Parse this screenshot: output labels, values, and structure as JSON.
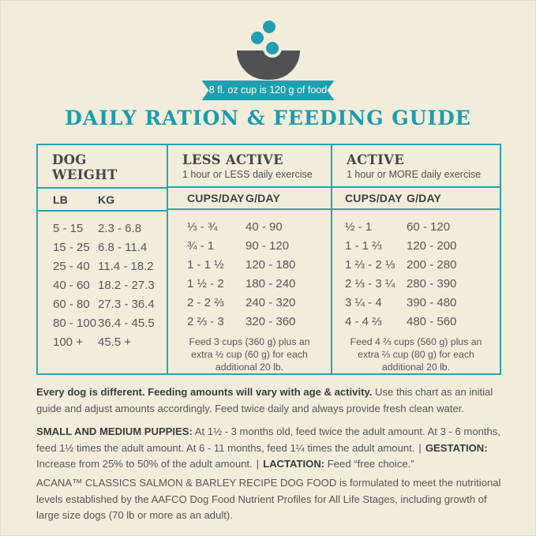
{
  "colors": {
    "background": "#f1edda",
    "accent_teal": "#1f9fb1",
    "border_teal": "#2aa3b3",
    "dark_gray": "#46474b",
    "text_gray": "#55565b"
  },
  "header": {
    "badge": "8 fl. oz cup is 120 g of food",
    "title": "DAILY RATION & FEEDING GUIDE"
  },
  "table": {
    "weight": {
      "title_line1": "DOG",
      "title_line2": "WEIGHT",
      "col1": "LB",
      "col2": "KG",
      "rows": [
        {
          "lb": "5 - 15",
          "kg": "2.3 - 6.8"
        },
        {
          "lb": "15 - 25",
          "kg": "6.8 - 11.4"
        },
        {
          "lb": "25 - 40",
          "kg": "11.4 - 18.2"
        },
        {
          "lb": "40 - 60",
          "kg": "18.2 - 27.3"
        },
        {
          "lb": "60 - 80",
          "kg": "27.3 - 36.4"
        },
        {
          "lb": "80 - 100",
          "kg": "36.4 - 45.5"
        },
        {
          "lb": "100 +",
          "kg": "45.5 +"
        }
      ]
    },
    "less_active": {
      "title": "LESS ACTIVE",
      "subtitle": "1 hour or LESS daily exercise",
      "col1": "CUPS/DAY",
      "col2": "G/DAY",
      "rows": [
        {
          "cups": "⅓ - ¾",
          "g": "40 - 90"
        },
        {
          "cups": "¾ - 1",
          "g": "90 - 120"
        },
        {
          "cups": "1 - 1 ½",
          "g": "120 - 180"
        },
        {
          "cups": "1 ½ - 2",
          "g": "180 - 240"
        },
        {
          "cups": "2 - 2 ⅔",
          "g": "240 - 320"
        },
        {
          "cups": "2 ⅔ - 3",
          "g": "320 - 360"
        }
      ],
      "note": "Feed 3 cups (360 g) plus an extra ½ cup (60 g) for each additional 20 lb."
    },
    "active": {
      "title": "ACTIVE",
      "subtitle": "1 hour or MORE daily exercise",
      "col1": "CUPS/DAY",
      "col2": "G/DAY",
      "rows": [
        {
          "cups": "½ - 1",
          "g": "60 - 120"
        },
        {
          "cups": "1 - 1 ⅔",
          "g": "120 - 200"
        },
        {
          "cups": "1 ⅔ - 2 ⅓",
          "g": "200 - 280"
        },
        {
          "cups": "2 ⅓ - 3 ¼",
          "g": "280 - 390"
        },
        {
          "cups": "3 ¼ - 4",
          "g": "390 - 480"
        },
        {
          "cups": "4 - 4 ⅔",
          "g": "480 - 560"
        }
      ],
      "note": "Feed 4 ⅔ cups (560 g) plus an extra ⅔ cup (80 g) for each additional 20 lb."
    }
  },
  "footer": {
    "p1": {
      "bold": "Every dog is different. Feeding amounts will vary with age & activity.",
      "rest": " Use this chart as an initial guide and adjust amounts accordingly. Feed twice daily and always provide fresh clean water."
    },
    "p2": {
      "puppies_label": "SMALL AND MEDIUM PUPPIES:",
      "puppies_text": " At 1½ - 3 months old, feed twice the adult amount. At 3 - 6 months, feed 1½ times the adult amount. At 6 - 11 months, feed 1¼ times the adult amount.",
      "sep1": "|",
      "gestation_label": "GESTATION:",
      "gestation_text": " Increase from 25% to 50% of the adult amount.",
      "sep2": "|",
      "lactation_label": "LACTATION:",
      "lactation_text": " Feed “free choice.”"
    },
    "p3": {
      "product": "ACANA™ CLASSICS SALMON & BARLEY RECIPE DOG FOOD",
      "rest": " is formulated to meet the nutritional levels established by the AAFCO Dog Food Nutrient Profiles for All Life Stages, including growth of large size dogs (70 lb or more as an adult)."
    }
  }
}
